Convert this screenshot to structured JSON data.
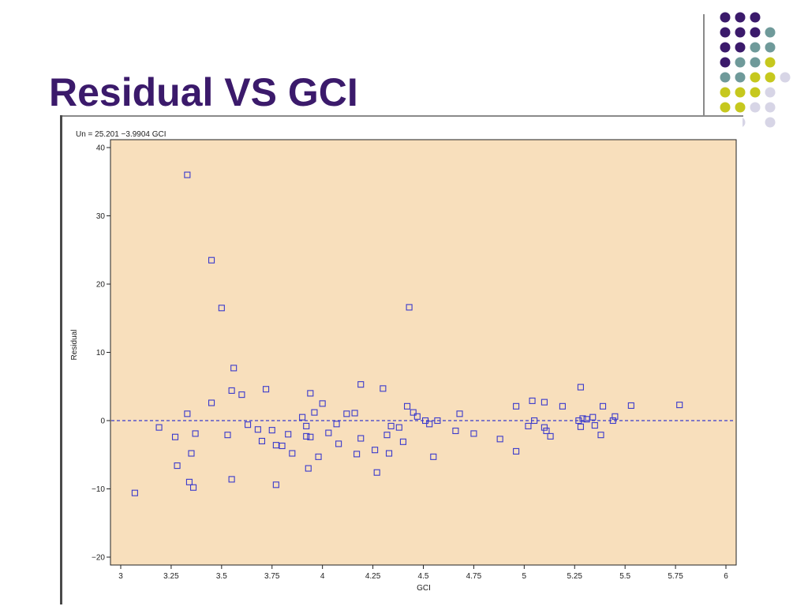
{
  "slide": {
    "title": "Residual VS GCI",
    "decor_colors": {
      "purple": "#3b1a6b",
      "teal": "#6f9a9a",
      "olive": "#c6c81e",
      "lavender": "#d7d5e6"
    }
  },
  "chart_data": {
    "type": "scatter",
    "equation": "Un  =  25.201  −3.9904 GCI",
    "xlabel": "GCI",
    "ylabel": "Residual",
    "xlim": [
      3,
      6
    ],
    "ylim": [
      -20,
      40
    ],
    "xticks": [
      "3",
      "3.25",
      "3.5",
      "3.75",
      "4",
      "4.25",
      "4.5",
      "4.75",
      "5",
      "5.25",
      "5.5",
      "5.75",
      "6"
    ],
    "yticks": [
      "40",
      "30",
      "20",
      "10",
      "0",
      "−10",
      "−20"
    ],
    "reference_line": {
      "y": 0,
      "style": "dashed",
      "color": "#3a3acc"
    },
    "plot_background": "#f8dfbc",
    "marker": "open-square",
    "marker_color": "#3a3acc",
    "points": [
      [
        3.07,
        -10.6
      ],
      [
        3.19,
        -1.0
      ],
      [
        3.27,
        -2.4
      ],
      [
        3.28,
        -6.6
      ],
      [
        3.33,
        36.0
      ],
      [
        3.33,
        1.0
      ],
      [
        3.34,
        -9.0
      ],
      [
        3.35,
        -4.8
      ],
      [
        3.36,
        -9.8
      ],
      [
        3.37,
        -1.9
      ],
      [
        3.45,
        23.5
      ],
      [
        3.45,
        2.6
      ],
      [
        3.5,
        16.5
      ],
      [
        3.53,
        -2.1
      ],
      [
        3.55,
        4.4
      ],
      [
        3.55,
        -8.6
      ],
      [
        3.56,
        7.7
      ],
      [
        3.6,
        3.8
      ],
      [
        3.63,
        -0.6
      ],
      [
        3.68,
        -1.3
      ],
      [
        3.7,
        -3.0
      ],
      [
        3.72,
        4.6
      ],
      [
        3.75,
        -1.4
      ],
      [
        3.77,
        -3.6
      ],
      [
        3.77,
        -9.4
      ],
      [
        3.8,
        -3.7
      ],
      [
        3.83,
        -2.0
      ],
      [
        3.85,
        -4.8
      ],
      [
        3.9,
        0.5
      ],
      [
        3.92,
        -0.8
      ],
      [
        3.92,
        -2.3
      ],
      [
        3.93,
        -7.0
      ],
      [
        3.94,
        4.0
      ],
      [
        3.94,
        -2.4
      ],
      [
        3.96,
        1.2
      ],
      [
        3.98,
        -5.3
      ],
      [
        4.0,
        2.5
      ],
      [
        4.03,
        -1.8
      ],
      [
        4.07,
        -0.5
      ],
      [
        4.08,
        -3.4
      ],
      [
        4.12,
        1.0
      ],
      [
        4.16,
        1.1
      ],
      [
        4.17,
        -4.9
      ],
      [
        4.19,
        5.3
      ],
      [
        4.19,
        -2.6
      ],
      [
        4.26,
        -4.3
      ],
      [
        4.27,
        -7.6
      ],
      [
        4.3,
        4.7
      ],
      [
        4.32,
        -2.1
      ],
      [
        4.33,
        -4.8
      ],
      [
        4.34,
        -0.8
      ],
      [
        4.38,
        -1.0
      ],
      [
        4.4,
        -3.1
      ],
      [
        4.42,
        2.1
      ],
      [
        4.43,
        16.6
      ],
      [
        4.45,
        1.2
      ],
      [
        4.47,
        0.6
      ],
      [
        4.51,
        0.0
      ],
      [
        4.53,
        -0.5
      ],
      [
        4.55,
        -5.3
      ],
      [
        4.57,
        0.0
      ],
      [
        4.66,
        -1.5
      ],
      [
        4.68,
        1.0
      ],
      [
        4.75,
        -1.9
      ],
      [
        4.88,
        -2.7
      ],
      [
        4.96,
        2.1
      ],
      [
        4.96,
        -4.5
      ],
      [
        5.02,
        -0.8
      ],
      [
        5.04,
        2.9
      ],
      [
        5.05,
        0.0
      ],
      [
        5.1,
        2.7
      ],
      [
        5.1,
        -1.0
      ],
      [
        5.11,
        -1.5
      ],
      [
        5.13,
        -2.3
      ],
      [
        5.19,
        2.1
      ],
      [
        5.27,
        0.0
      ],
      [
        5.28,
        4.9
      ],
      [
        5.28,
        -0.9
      ],
      [
        5.29,
        0.3
      ],
      [
        5.31,
        0.2
      ],
      [
        5.34,
        0.5
      ],
      [
        5.35,
        -0.7
      ],
      [
        5.38,
        -2.1
      ],
      [
        5.39,
        2.1
      ],
      [
        5.44,
        0.0
      ],
      [
        5.45,
        0.6
      ],
      [
        5.53,
        2.2
      ],
      [
        5.77,
        2.3
      ]
    ]
  }
}
